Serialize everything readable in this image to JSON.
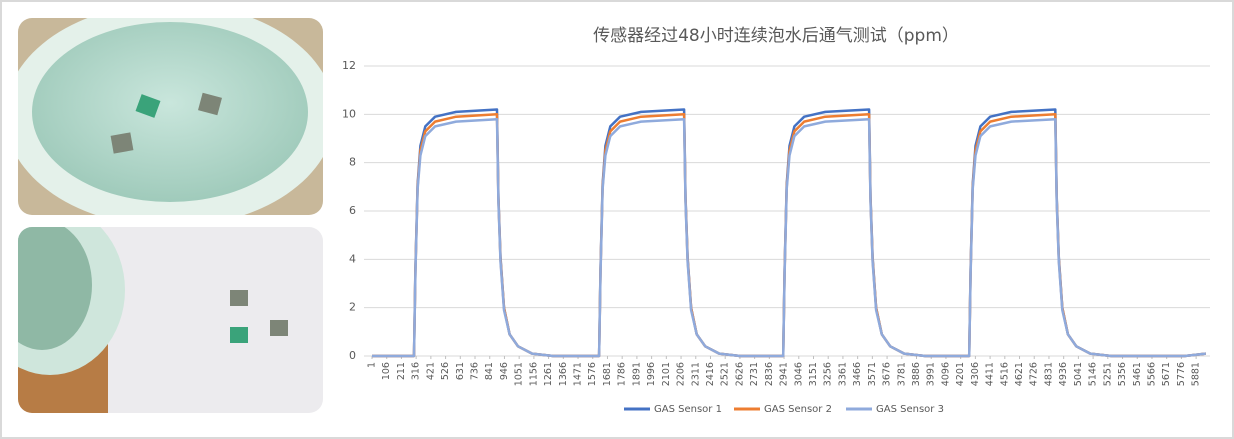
{
  "chart_data": {
    "type": "line",
    "title": "传感器经过48小时连续泡水后通气测试（ppm）",
    "x": [
      1,
      301,
      311,
      326,
      346,
      381,
      451,
      601,
      893,
      903,
      918,
      943,
      983,
      1043,
      1143,
      1293,
      1621,
      1631,
      1646,
      1666,
      1701,
      1771,
      1921,
      2228,
      2238,
      2253,
      2278,
      2318,
      2378,
      2478,
      2628,
      2935,
      2945,
      2960,
      2980,
      3015,
      3085,
      3235,
      3548,
      3558,
      3573,
      3598,
      3638,
      3698,
      3798,
      3948,
      4262,
      4272,
      4287,
      4307,
      4342,
      4412,
      4562,
      4876,
      4886,
      4901,
      4926,
      4966,
      5026,
      5126,
      5276,
      5800,
      5950
    ],
    "series": [
      {
        "name": "GAS Sensor 1",
        "color": "#4472c4",
        "values": [
          0,
          0,
          3.6,
          7.1,
          8.7,
          9.5,
          9.9,
          10.1,
          10.2,
          6.6,
          4.1,
          2,
          0.9,
          0.4,
          0.1,
          0,
          0,
          3.6,
          7.1,
          8.7,
          9.5,
          9.9,
          10.1,
          10.2,
          6.6,
          4.1,
          2,
          0.9,
          0.4,
          0.1,
          0,
          0,
          3.6,
          7.1,
          8.7,
          9.5,
          9.9,
          10.1,
          10.2,
          6.6,
          4.1,
          2,
          0.9,
          0.4,
          0.1,
          0,
          0,
          3.6,
          7.1,
          8.7,
          9.5,
          9.9,
          10.1,
          10.2,
          6.6,
          4.1,
          2,
          0.9,
          0.4,
          0.1,
          0,
          0,
          0.1
        ]
      },
      {
        "name": "GAS Sensor 2",
        "color": "#ed7d31",
        "values": [
          0,
          0,
          3.5,
          7,
          8.5,
          9.3,
          9.7,
          9.9,
          10,
          6.5,
          4,
          2,
          0.9,
          0.4,
          0.1,
          0,
          0,
          3.5,
          7,
          8.5,
          9.3,
          9.7,
          9.9,
          10,
          6.5,
          4,
          2,
          0.9,
          0.4,
          0.1,
          0,
          0,
          3.5,
          7,
          8.5,
          9.3,
          9.7,
          9.9,
          10,
          6.5,
          4,
          2,
          0.9,
          0.4,
          0.1,
          0,
          0,
          3.5,
          7,
          8.5,
          9.3,
          9.7,
          9.9,
          10,
          6.5,
          4,
          2,
          0.9,
          0.4,
          0.1,
          0,
          0,
          0.1
        ]
      },
      {
        "name": "GAS Sensor 3",
        "color": "#8faadc",
        "values": [
          0,
          0,
          3.4,
          6.9,
          8.3,
          9.1,
          9.5,
          9.7,
          9.8,
          6.4,
          3.9,
          1.9,
          0.9,
          0.4,
          0.1,
          0,
          0,
          3.4,
          6.9,
          8.3,
          9.1,
          9.5,
          9.7,
          9.8,
          6.4,
          3.9,
          1.9,
          0.9,
          0.4,
          0.1,
          0,
          0,
          3.4,
          6.9,
          8.3,
          9.1,
          9.5,
          9.7,
          9.8,
          6.4,
          3.9,
          1.9,
          0.9,
          0.4,
          0.1,
          0,
          0,
          3.4,
          6.9,
          8.3,
          9.1,
          9.5,
          9.7,
          9.8,
          6.4,
          3.9,
          1.9,
          0.9,
          0.4,
          0.1,
          0,
          0,
          0.1
        ]
      }
    ],
    "xlim": [
      1,
      5980
    ],
    "xticks": [
      1,
      106,
      211,
      316,
      421,
      526,
      631,
      736,
      841,
      946,
      1051,
      1156,
      1261,
      1366,
      1471,
      1576,
      1681,
      1786,
      1891,
      1996,
      2101,
      2206,
      2311,
      2416,
      2521,
      2626,
      2731,
      2836,
      2941,
      3046,
      3151,
      3256,
      3361,
      3466,
      3571,
      3676,
      3781,
      3886,
      3991,
      4096,
      4201,
      4306,
      4411,
      4516,
      4621,
      4726,
      4831,
      4936,
      5041,
      5146,
      5251,
      5356,
      5461,
      5566,
      5671,
      5776,
      5881
    ],
    "ylim": [
      0,
      12
    ],
    "yticks": [
      0,
      2,
      4,
      6,
      8,
      10,
      12
    ],
    "grid": true,
    "legend": "bottom"
  }
}
